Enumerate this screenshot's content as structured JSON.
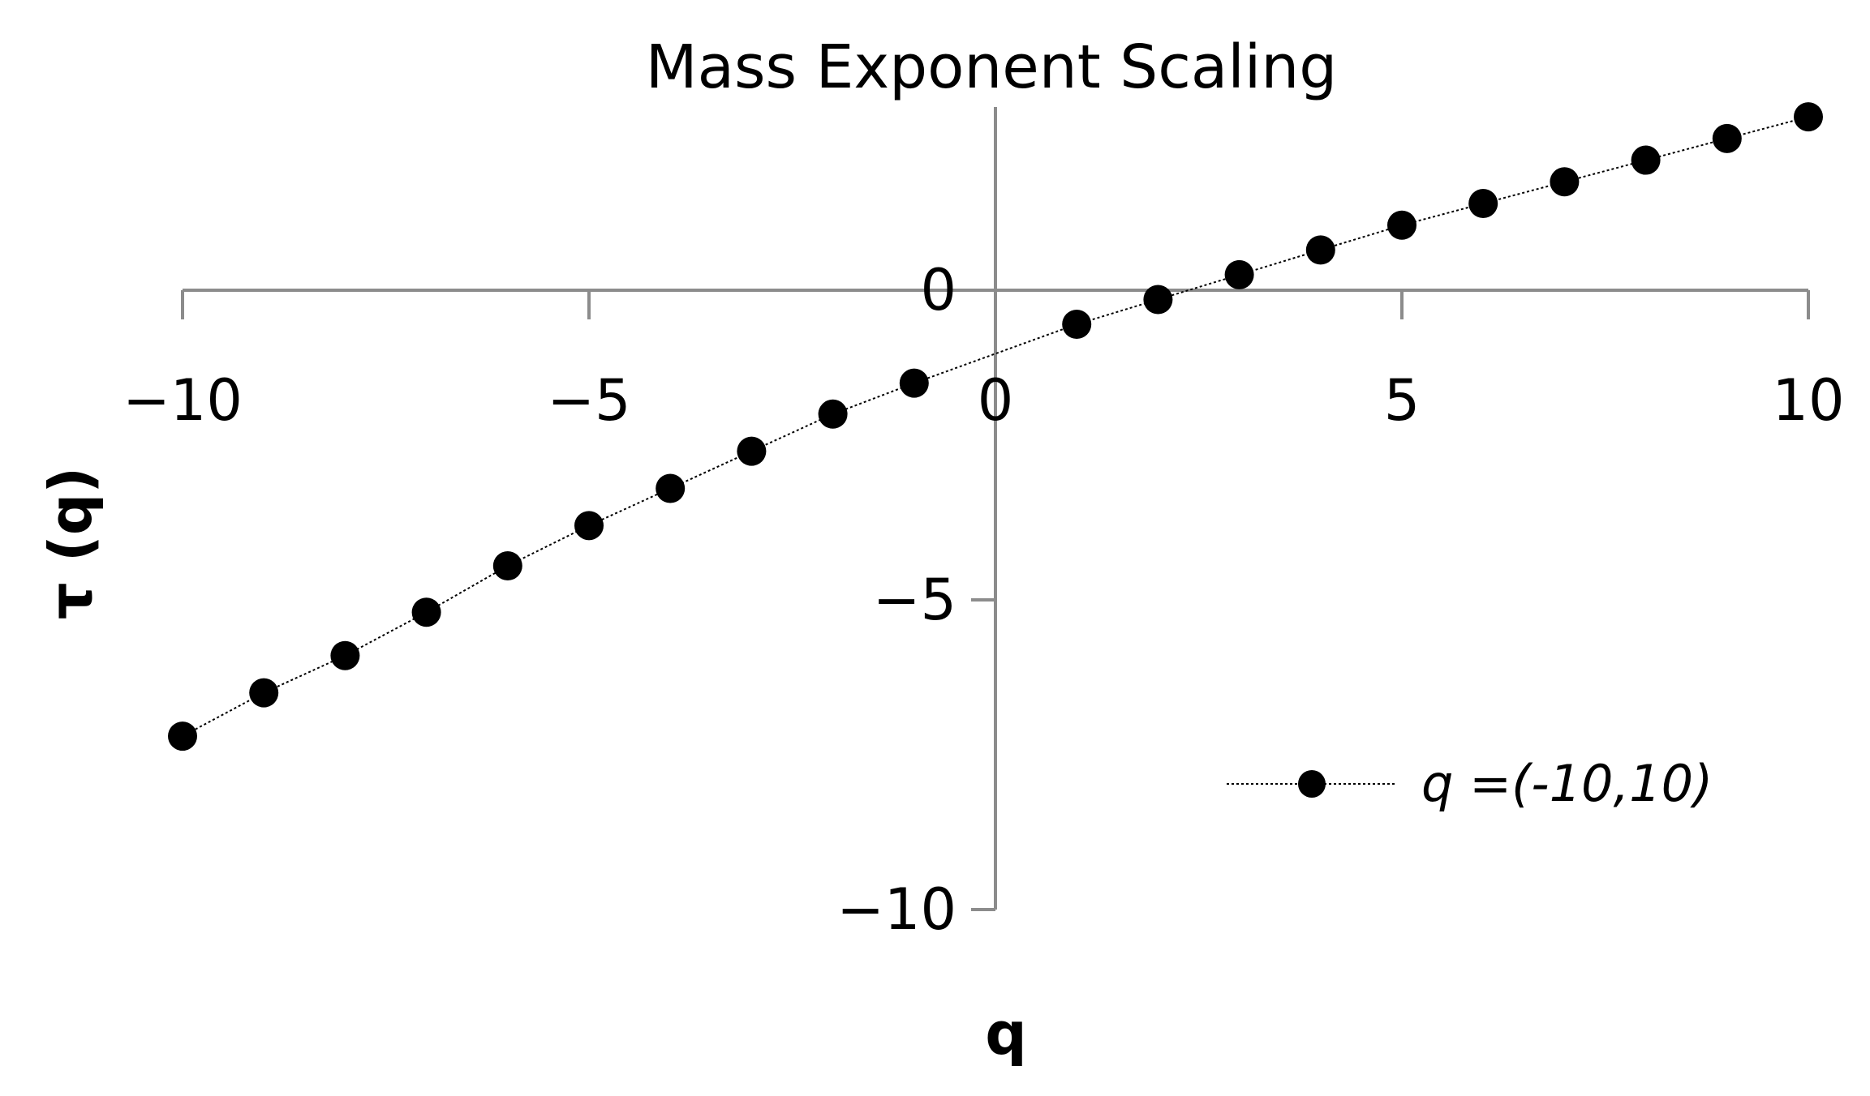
{
  "chart_data": {
    "type": "line",
    "title": "Mass Exponent Scaling",
    "xlabel": "q",
    "ylabel": "τ (q)",
    "xlim": [
      -10,
      10
    ],
    "ylim": [
      -10,
      3
    ],
    "x_ticks": [
      -10,
      -5,
      0,
      5,
      10
    ],
    "x_tick_labels": [
      "−10",
      "−5",
      "0",
      "5",
      "10"
    ],
    "y_ticks": [
      0,
      -5,
      -10
    ],
    "y_tick_labels": [
      "0",
      "−5",
      "−10"
    ],
    "grid": false,
    "legend_position": "bottom-right",
    "series": [
      {
        "name": "q =(-10,10)",
        "color": "#000000",
        "line_style": "dotted",
        "marker": "filled-circle",
        "x": [
          -10,
          -9,
          -8,
          -7,
          -6,
          -5,
          -4,
          -3,
          -2,
          -1,
          1,
          2,
          3,
          4,
          5,
          6,
          7,
          8,
          9,
          10
        ],
        "y": [
          -7.2,
          -6.5,
          -5.9,
          -5.2,
          -4.45,
          -3.8,
          -3.2,
          -2.6,
          -2.0,
          -1.5,
          -0.55,
          -0.15,
          0.25,
          0.65,
          1.05,
          1.4,
          1.75,
          2.1,
          2.45,
          2.8
        ]
      }
    ]
  }
}
